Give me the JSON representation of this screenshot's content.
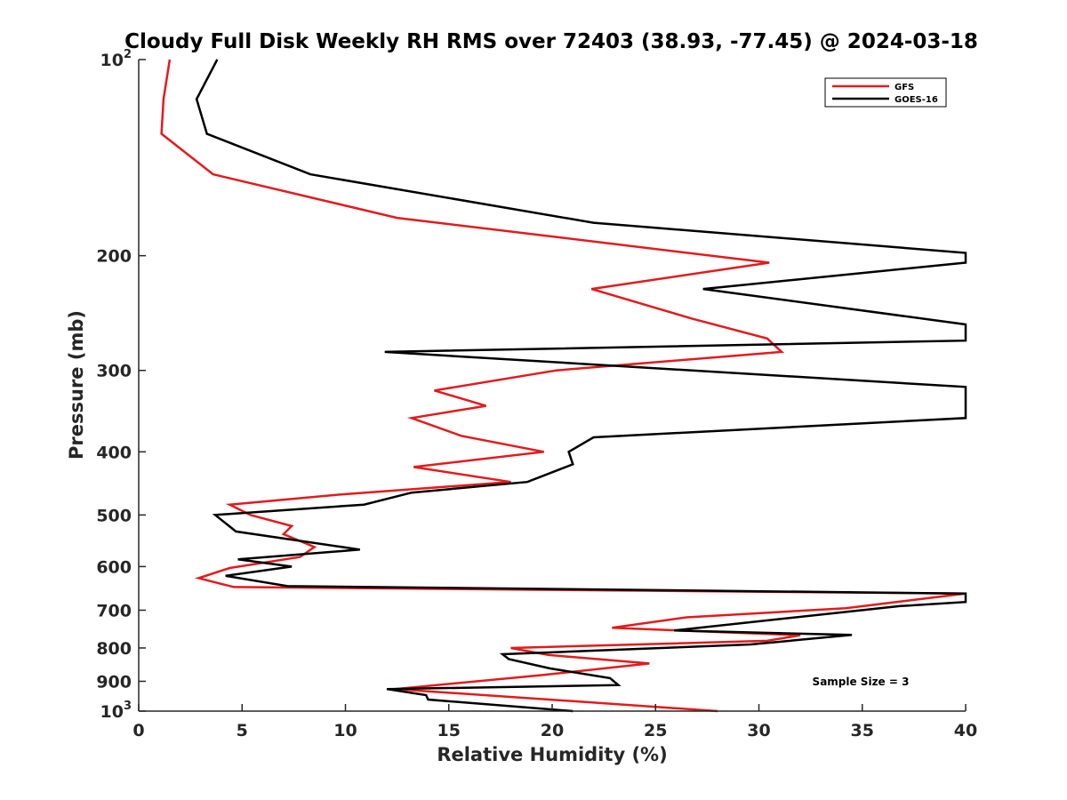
{
  "chart_data": {
    "type": "line",
    "title": "Cloudy Full Disk Weekly RH RMS over 72403 (38.93, -77.45) @ 2024-03-18",
    "xlabel": "Relative Humidity (%)",
    "ylabel": "Pressure (mb)",
    "xlim": [
      0,
      40
    ],
    "ylim": [
      100,
      1000
    ],
    "yscale": "log",
    "y_reversed": true,
    "xticks": [
      0,
      5,
      10,
      15,
      20,
      25,
      30,
      35,
      40
    ],
    "xtick_labels": [
      "0",
      "5",
      "10",
      "15",
      "20",
      "25",
      "30",
      "35",
      "40"
    ],
    "yticks": [
      100,
      200,
      300,
      400,
      500,
      600,
      700,
      800,
      900,
      1000
    ],
    "ytick_labels": [
      {
        "base": "10",
        "exp": "2"
      },
      {
        "base": "200",
        "exp": ""
      },
      {
        "base": "300",
        "exp": ""
      },
      {
        "base": "400",
        "exp": ""
      },
      {
        "base": "500",
        "exp": ""
      },
      {
        "base": "600",
        "exp": ""
      },
      {
        "base": "700",
        "exp": ""
      },
      {
        "base": "800",
        "exp": ""
      },
      {
        "base": "900",
        "exp": ""
      },
      {
        "base": "10",
        "exp": "3"
      }
    ],
    "grid": false,
    "legend_position": "top-right",
    "annotation": "Sample Size = 3",
    "series": [
      {
        "name": "GFS",
        "color": "#e41a1c",
        "points": [
          [
            1.5,
            100
          ],
          [
            1.2,
            115
          ],
          [
            1.1,
            130
          ],
          [
            3.6,
            150
          ],
          [
            12.5,
            175
          ],
          [
            30.5,
            205
          ],
          [
            21.9,
            225
          ],
          [
            26.8,
            250
          ],
          [
            30.4,
            268
          ],
          [
            31.1,
            281
          ],
          [
            20.2,
            300
          ],
          [
            14.3,
            322
          ],
          [
            16.8,
            340
          ],
          [
            13.2,
            355
          ],
          [
            15.6,
            378
          ],
          [
            19.6,
            400
          ],
          [
            13.3,
            422
          ],
          [
            18.0,
            445
          ],
          [
            9.8,
            465
          ],
          [
            4.4,
            482
          ],
          [
            5.4,
            500
          ],
          [
            7.4,
            520
          ],
          [
            7.0,
            535
          ],
          [
            8.5,
            560
          ],
          [
            7.8,
            580
          ],
          [
            4.4,
            603
          ],
          [
            2.9,
            625
          ],
          [
            4.6,
            645
          ],
          [
            40.0,
            660
          ],
          [
            37.0,
            678
          ],
          [
            34.2,
            695
          ],
          [
            26.5,
            718
          ],
          [
            22.9,
            745
          ],
          [
            32.0,
            765
          ],
          [
            30.4,
            780
          ],
          [
            18.0,
            800
          ],
          [
            19.8,
            820
          ],
          [
            24.7,
            845
          ],
          [
            19.6,
            880
          ],
          [
            12.4,
            925
          ],
          [
            17.8,
            950
          ],
          [
            28.0,
            1000
          ]
        ]
      },
      {
        "name": "GOES-16",
        "color": "#000000",
        "points": [
          [
            3.8,
            100
          ],
          [
            2.8,
            115
          ],
          [
            3.3,
            130
          ],
          [
            8.3,
            150
          ],
          [
            22.0,
            178
          ],
          [
            40.0,
            198
          ],
          [
            40.0,
            205
          ],
          [
            27.3,
            225
          ],
          [
            40.0,
            255
          ],
          [
            40.0,
            270
          ],
          [
            11.9,
            281
          ],
          [
            40.0,
            318
          ],
          [
            40.0,
            355
          ],
          [
            22.0,
            380
          ],
          [
            20.8,
            400
          ],
          [
            21.0,
            418
          ],
          [
            18.8,
            445
          ],
          [
            13.2,
            462
          ],
          [
            10.9,
            482
          ],
          [
            3.7,
            500
          ],
          [
            4.7,
            530
          ],
          [
            10.7,
            565
          ],
          [
            4.8,
            585
          ],
          [
            7.4,
            600
          ],
          [
            4.2,
            620
          ],
          [
            7.2,
            643
          ],
          [
            40.0,
            660
          ],
          [
            40.0,
            680
          ],
          [
            36.8,
            690
          ],
          [
            25.9,
            752
          ],
          [
            34.5,
            764
          ],
          [
            29.6,
            790
          ],
          [
            17.6,
            818
          ],
          [
            17.9,
            832
          ],
          [
            19.9,
            860
          ],
          [
            22.8,
            890
          ],
          [
            23.2,
            912
          ],
          [
            12.0,
            925
          ],
          [
            13.9,
            945
          ],
          [
            14.0,
            960
          ],
          [
            21.0,
            1000
          ]
        ]
      }
    ]
  }
}
